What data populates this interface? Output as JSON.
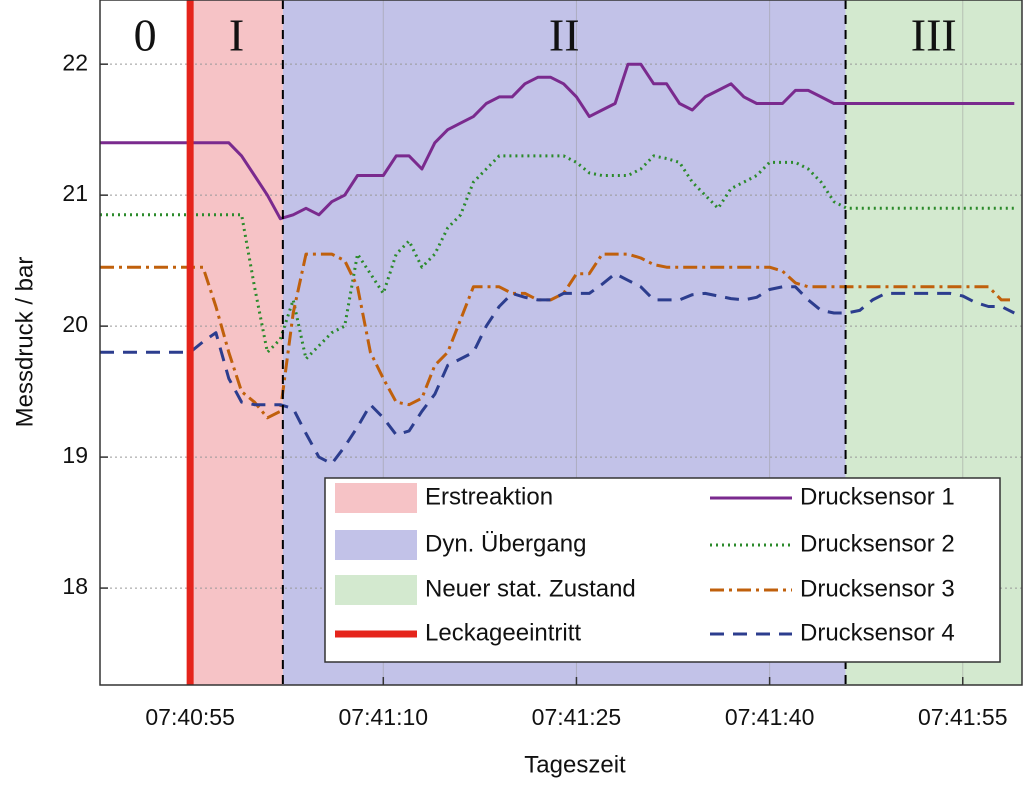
{
  "chart_data": {
    "type": "line",
    "x_label": "Tageszeit",
    "y_label": "Messdruck / bar",
    "x": [
      27648,
      27649,
      27650,
      27651,
      27652,
      27653,
      27654,
      27655,
      27656,
      27657,
      27658,
      27659,
      27660,
      27661,
      27662,
      27663,
      27664,
      27665,
      27666,
      27667,
      27668,
      27669,
      27670,
      27671,
      27672,
      27673,
      27674,
      27675,
      27676,
      27677,
      27678,
      27679,
      27680,
      27681,
      27682,
      27683,
      27684,
      27685,
      27686,
      27687,
      27688,
      27689,
      27690,
      27691,
      27692,
      27693,
      27694,
      27695,
      27696,
      27697,
      27698,
      27699,
      27700,
      27701,
      27702,
      27703,
      27704,
      27705,
      27706,
      27707,
      27708,
      27709,
      27710,
      27711,
      27712,
      27713,
      27714,
      27715,
      27716,
      27717,
      27718,
      27719
    ],
    "xlim": [
      27648,
      27719.6
    ],
    "xticks": [
      {
        "value": 27655,
        "label": "07:40:55"
      },
      {
        "value": 27670,
        "label": "07:41:10"
      },
      {
        "value": 27685,
        "label": "07:41:25"
      },
      {
        "value": 27700,
        "label": "07:41:40"
      },
      {
        "value": 27715,
        "label": "07:41:55"
      }
    ],
    "ylim": [
      17.26,
      22.49
    ],
    "yticks": [
      18,
      19,
      20,
      21,
      22
    ],
    "grid": true,
    "regions": [
      {
        "label": "0",
        "start": 27648,
        "end": 27655
      },
      {
        "label": "I",
        "name": "Erstreaktion",
        "start": 27655,
        "end": 27662.2,
        "color": "#f6c3c6"
      },
      {
        "label": "II",
        "name": "Dyn. Übergang",
        "start": 27662.2,
        "end": 27705.9,
        "color": "#c2c2e8"
      },
      {
        "label": "III",
        "name": "Neuer stat. Zustand",
        "start": 27705.9,
        "end": 27719.6,
        "color": "#d3e9cf"
      }
    ],
    "event": {
      "name": "Leckageeintritt",
      "x": 27655,
      "color": "#e5241b"
    },
    "series": [
      {
        "name": "Drucksensor 1",
        "color": "#7a2a8e",
        "style": "solid",
        "values": [
          21.4,
          21.4,
          21.4,
          21.4,
          21.4,
          21.4,
          21.4,
          21.4,
          21.4,
          21.4,
          21.4,
          21.3,
          21.15,
          21.0,
          20.82,
          20.85,
          20.9,
          20.85,
          20.95,
          21.0,
          21.15,
          21.15,
          21.15,
          21.3,
          21.3,
          21.2,
          21.4,
          21.5,
          21.55,
          21.6,
          21.7,
          21.75,
          21.75,
          21.85,
          21.9,
          21.9,
          21.85,
          21.75,
          21.6,
          21.65,
          21.7,
          22.0,
          22.0,
          21.85,
          21.85,
          21.7,
          21.65,
          21.75,
          21.8,
          21.85,
          21.75,
          21.7,
          21.7,
          21.7,
          21.8,
          21.8,
          21.75,
          21.7,
          21.7,
          21.7,
          21.7,
          21.7,
          21.7,
          21.7,
          21.7,
          21.7,
          21.7,
          21.7,
          21.7,
          21.7,
          21.7,
          21.7
        ]
      },
      {
        "name": "Drucksensor 2",
        "color": "#2b8a2b",
        "style": "dotted",
        "values": [
          20.85,
          20.85,
          20.85,
          20.85,
          20.85,
          20.85,
          20.85,
          20.85,
          20.85,
          20.85,
          20.85,
          20.85,
          20.3,
          19.8,
          19.9,
          20.2,
          19.75,
          19.85,
          19.95,
          20.0,
          20.55,
          20.4,
          20.25,
          20.55,
          20.65,
          20.45,
          20.55,
          20.75,
          20.85,
          21.1,
          21.2,
          21.3,
          21.3,
          21.3,
          21.3,
          21.3,
          21.3,
          21.25,
          21.17,
          21.15,
          21.15,
          21.15,
          21.2,
          21.3,
          21.28,
          21.25,
          21.1,
          21.0,
          20.9,
          21.05,
          21.1,
          21.15,
          21.25,
          21.25,
          21.25,
          21.2,
          21.1,
          20.95,
          20.9,
          20.9,
          20.9,
          20.9,
          20.9,
          20.9,
          20.9,
          20.9,
          20.9,
          20.9,
          20.9,
          20.9,
          20.9,
          20.9
        ]
      },
      {
        "name": "Drucksensor 3",
        "color": "#c0600c",
        "style": "dashdot",
        "values": [
          20.45,
          20.45,
          20.45,
          20.45,
          20.45,
          20.45,
          20.45,
          20.45,
          20.45,
          20.15,
          19.8,
          19.5,
          19.42,
          19.3,
          19.35,
          20.1,
          20.55,
          20.55,
          20.55,
          20.5,
          20.3,
          19.8,
          19.6,
          19.42,
          19.4,
          19.45,
          19.7,
          19.8,
          20.05,
          20.3,
          20.3,
          20.3,
          20.25,
          20.25,
          20.2,
          20.2,
          20.25,
          20.4,
          20.4,
          20.55,
          20.55,
          20.55,
          20.52,
          20.47,
          20.45,
          20.45,
          20.45,
          20.45,
          20.45,
          20.45,
          20.45,
          20.45,
          20.45,
          20.42,
          20.33,
          20.3,
          20.3,
          20.3,
          20.3,
          20.3,
          20.3,
          20.3,
          20.3,
          20.3,
          20.3,
          20.3,
          20.3,
          20.3,
          20.3,
          20.3,
          20.2,
          20.2
        ]
      },
      {
        "name": "Drucksensor 4",
        "color": "#2c3d8e",
        "style": "dashed",
        "values": [
          19.8,
          19.8,
          19.8,
          19.8,
          19.8,
          19.8,
          19.8,
          19.8,
          19.88,
          19.95,
          19.6,
          19.42,
          19.4,
          19.4,
          19.4,
          19.37,
          19.18,
          19.0,
          18.95,
          19.08,
          19.23,
          19.4,
          19.3,
          19.17,
          19.2,
          19.35,
          19.48,
          19.7,
          19.75,
          19.8,
          20.0,
          20.15,
          20.25,
          20.22,
          20.2,
          20.2,
          20.25,
          20.25,
          20.25,
          20.32,
          20.4,
          20.35,
          20.3,
          20.2,
          20.2,
          20.2,
          20.24,
          20.25,
          20.23,
          20.21,
          20.2,
          20.22,
          20.28,
          20.3,
          20.3,
          20.2,
          20.12,
          20.1,
          20.1,
          20.12,
          20.2,
          20.25,
          20.25,
          20.25,
          20.25,
          20.25,
          20.25,
          20.23,
          20.18,
          20.15,
          20.15,
          20.1
        ]
      }
    ]
  }
}
